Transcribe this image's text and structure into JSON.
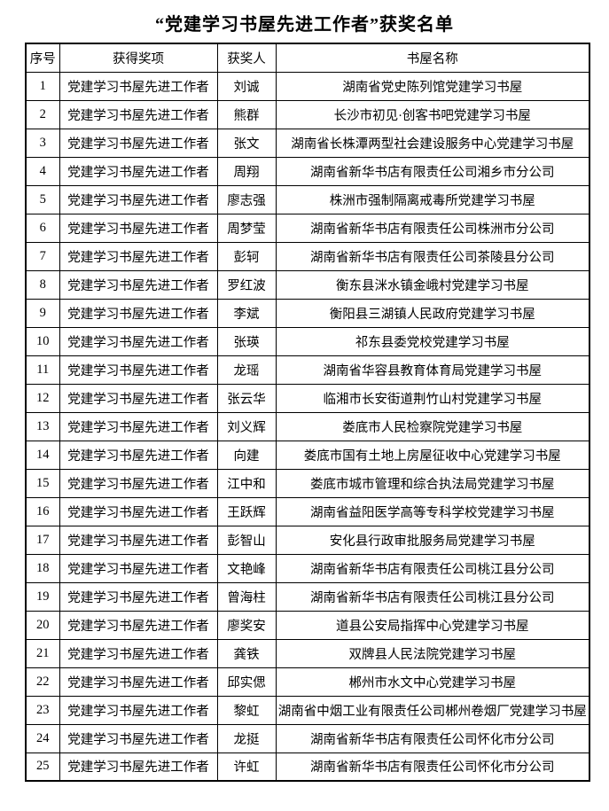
{
  "title": "“党建学习书屋先进工作者”获奖名单",
  "table": {
    "headers": [
      "序号",
      "获得奖项",
      "获奖人",
      "书屋名称"
    ],
    "rows": [
      [
        "1",
        "党建学习书屋先进工作者",
        "刘诚",
        "湖南省党史陈列馆党建学习书屋"
      ],
      [
        "2",
        "党建学习书屋先进工作者",
        "熊群",
        "长沙市初见·创客书吧党建学习书屋"
      ],
      [
        "3",
        "党建学习书屋先进工作者",
        "张文",
        "湖南省长株潭两型社会建设服务中心党建学习书屋"
      ],
      [
        "4",
        "党建学习书屋先进工作者",
        "周翔",
        "湖南省新华书店有限责任公司湘乡市分公司"
      ],
      [
        "5",
        "党建学习书屋先进工作者",
        "廖志强",
        "株洲市强制隔离戒毒所党建学习书屋"
      ],
      [
        "6",
        "党建学习书屋先进工作者",
        "周梦莹",
        "湖南省新华书店有限责任公司株洲市分公司"
      ],
      [
        "7",
        "党建学习书屋先进工作者",
        "彭轲",
        "湖南省新华书店有限责任公司茶陵县分公司"
      ],
      [
        "8",
        "党建学习书屋先进工作者",
        "罗红波",
        "衡东县洣水镇金峨村党建学习书屋"
      ],
      [
        "9",
        "党建学习书屋先进工作者",
        "李斌",
        "衡阳县三湖镇人民政府党建学习书屋"
      ],
      [
        "10",
        "党建学习书屋先进工作者",
        "张瑛",
        "祁东县委党校党建学习书屋"
      ],
      [
        "11",
        "党建学习书屋先进工作者",
        "龙瑶",
        "湖南省华容县教育体育局党建学习书屋"
      ],
      [
        "12",
        "党建学习书屋先进工作者",
        "张云华",
        "临湘市长安街道荆竹山村党建学习书屋"
      ],
      [
        "13",
        "党建学习书屋先进工作者",
        "刘义辉",
        "娄底市人民检察院党建学习书屋"
      ],
      [
        "14",
        "党建学习书屋先进工作者",
        "向建",
        "娄底市国有土地上房屋征收中心党建学习书屋"
      ],
      [
        "15",
        "党建学习书屋先进工作者",
        "江中和",
        "娄底市城市管理和综合执法局党建学习书屋"
      ],
      [
        "16",
        "党建学习书屋先进工作者",
        "王跃辉",
        "湖南省益阳医学高等专科学校党建学习书屋"
      ],
      [
        "17",
        "党建学习书屋先进工作者",
        "彭智山",
        "安化县行政审批服务局党建学习书屋"
      ],
      [
        "18",
        "党建学习书屋先进工作者",
        "文艳峰",
        "湖南省新华书店有限责任公司桃江县分公司"
      ],
      [
        "19",
        "党建学习书屋先进工作者",
        "曾海柱",
        "湖南省新华书店有限责任公司桃江县分公司"
      ],
      [
        "20",
        "党建学习书屋先进工作者",
        "廖奖安",
        "道县公安局指挥中心党建学习书屋"
      ],
      [
        "21",
        "党建学习书屋先进工作者",
        "龚铁",
        "双牌县人民法院党建学习书屋"
      ],
      [
        "22",
        "党建学习书屋先进工作者",
        "邱实偲",
        "郴州市水文中心党建学习书屋"
      ],
      [
        "23",
        "党建学习书屋先进工作者",
        "黎虹",
        "湖南省中烟工业有限责任公司郴州卷烟厂党建学习书屋"
      ],
      [
        "24",
        "党建学习书屋先进工作者",
        "龙挺",
        "湖南省新华书店有限责任公司怀化市分公司"
      ],
      [
        "25",
        "党建学习书屋先进工作者",
        "许虹",
        "湖南省新华书店有限责任公司怀化市分公司"
      ]
    ]
  }
}
